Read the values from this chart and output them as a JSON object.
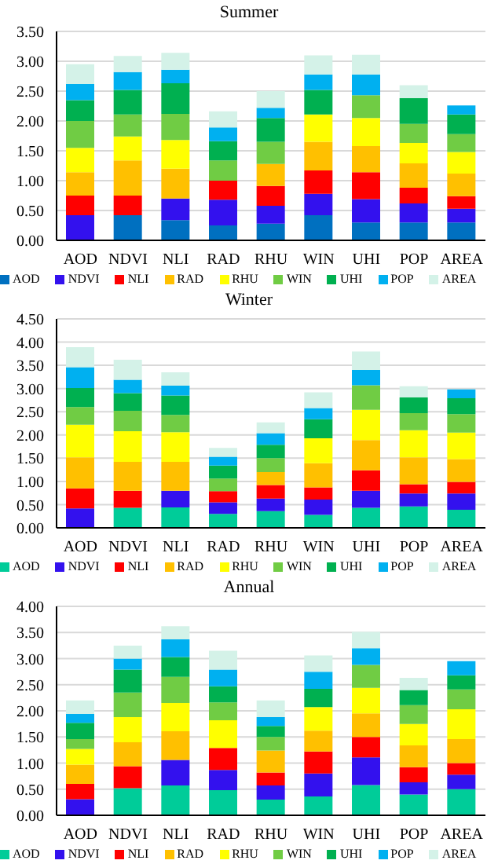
{
  "chart_data": [
    {
      "type": "bar",
      "title": "Summer",
      "stacked": true,
      "grid": "y",
      "legend": "bottom",
      "categories": [
        "AOD",
        "NDVI",
        "NLI",
        "RAD",
        "RHU",
        "WIN",
        "UHI",
        "POP",
        "AREA"
      ],
      "ylim": [
        0,
        3.5
      ],
      "yticks": [
        {
          "value": 0,
          "label": "0.00"
        },
        {
          "value": 0.5,
          "label": "0.50"
        },
        {
          "value": 1,
          "label": "1.00"
        },
        {
          "value": 1.5,
          "label": "1.50"
        },
        {
          "value": 2,
          "label": "2.00"
        },
        {
          "value": 2.5,
          "label": "2.50"
        },
        {
          "value": 3,
          "label": "3.00"
        },
        {
          "value": 3.5,
          "label": "3.50"
        }
      ],
      "series": [
        {
          "name": "AOD",
          "color": "#0070c0",
          "values": [
            0,
            0.42,
            0.34,
            0.25,
            0.28,
            0.42,
            0.3,
            0.3,
            0.3
          ]
        },
        {
          "name": "NDVI",
          "color": "#3311ee",
          "values": [
            0.42,
            0,
            0.36,
            0.43,
            0.3,
            0.36,
            0.39,
            0.32,
            0.23
          ]
        },
        {
          "name": "NLI",
          "color": "#ff0000",
          "values": [
            0.33,
            0.33,
            0,
            0.32,
            0.33,
            0.39,
            0.45,
            0.26,
            0.21
          ]
        },
        {
          "name": "RAD",
          "color": "#ffc000",
          "values": [
            0.39,
            0.59,
            0.5,
            0,
            0.37,
            0.48,
            0.44,
            0.41,
            0.38
          ]
        },
        {
          "name": "RHU",
          "color": "#ffff00",
          "values": [
            0.41,
            0.4,
            0.48,
            0,
            0,
            0.46,
            0.47,
            0.34,
            0.36
          ]
        },
        {
          "name": "WIN",
          "color": "#70cc44",
          "values": [
            0.45,
            0.37,
            0.44,
            0.34,
            0.37,
            0,
            0.38,
            0.32,
            0.3
          ]
        },
        {
          "name": "UHI",
          "color": "#00b050",
          "values": [
            0.35,
            0.41,
            0.51,
            0.32,
            0.4,
            0.41,
            0,
            0.43,
            0.33
          ]
        },
        {
          "name": "POP",
          "color": "#00b0f0",
          "values": [
            0.27,
            0.3,
            0.23,
            0.23,
            0.17,
            0.26,
            0.35,
            0,
            0.15
          ]
        },
        {
          "name": "AREA",
          "color": "#d4f2e8",
          "values": [
            0.33,
            0.27,
            0.28,
            0.27,
            0.28,
            0.32,
            0.33,
            0.22,
            0
          ]
        }
      ]
    },
    {
      "type": "bar",
      "title": "Winter",
      "stacked": true,
      "grid": "y",
      "legend": "bottom",
      "categories": [
        "AOD",
        "NDVI",
        "NLI",
        "RAD",
        "RHU",
        "WIN",
        "UHI",
        "POP",
        "AREA"
      ],
      "ylim": [
        0,
        4.5
      ],
      "yticks": [
        {
          "value": 0,
          "label": "0.00"
        },
        {
          "value": 0.5,
          "label": "0.50"
        },
        {
          "value": 1,
          "label": "1.00"
        },
        {
          "value": 1.5,
          "label": "1.50"
        },
        {
          "value": 2,
          "label": "2.00"
        },
        {
          "value": 2.5,
          "label": "2.50"
        },
        {
          "value": 3,
          "label": "3.00"
        },
        {
          "value": 3.5,
          "label": "3.50"
        },
        {
          "value": 4,
          "label": "4.00"
        },
        {
          "value": 4.5,
          "label": "4.50"
        }
      ],
      "series": [
        {
          "name": "AOD",
          "color": "#00cc99",
          "values": [
            0,
            0.43,
            0.44,
            0.3,
            0.36,
            0.28,
            0.43,
            0.46,
            0.39
          ]
        },
        {
          "name": "NDVI",
          "color": "#3311ee",
          "values": [
            0.42,
            0,
            0.36,
            0.25,
            0.27,
            0.33,
            0.37,
            0.28,
            0.35
          ]
        },
        {
          "name": "NLI",
          "color": "#ff0000",
          "values": [
            0.43,
            0.37,
            0,
            0.24,
            0.29,
            0.26,
            0.44,
            0.2,
            0.25
          ]
        },
        {
          "name": "RAD",
          "color": "#ffc000",
          "values": [
            0.67,
            0.62,
            0.62,
            0,
            0.28,
            0.52,
            0.65,
            0.58,
            0.49
          ]
        },
        {
          "name": "RHU",
          "color": "#ffff00",
          "values": [
            0.7,
            0.66,
            0.64,
            0,
            0,
            0.54,
            0.65,
            0.58,
            0.57
          ]
        },
        {
          "name": "WIN",
          "color": "#70cc44",
          "values": [
            0.38,
            0.44,
            0.37,
            0.27,
            0.3,
            0,
            0.53,
            0.37,
            0.4
          ]
        },
        {
          "name": "UHI",
          "color": "#00b050",
          "values": [
            0.41,
            0.38,
            0.42,
            0.28,
            0.29,
            0.41,
            0,
            0.34,
            0.34
          ]
        },
        {
          "name": "POP",
          "color": "#00b0f0",
          "values": [
            0.45,
            0.29,
            0.21,
            0.19,
            0.25,
            0.24,
            0.33,
            0,
            0.19
          ]
        },
        {
          "name": "AREA",
          "color": "#d4f2e8",
          "values": [
            0.43,
            0.43,
            0.29,
            0.19,
            0.23,
            0.34,
            0.4,
            0.24,
            0
          ]
        }
      ]
    },
    {
      "type": "bar",
      "title": "Annual",
      "stacked": true,
      "grid": "y",
      "legend": "bottom",
      "categories": [
        "AOD",
        "NDVI",
        "NLI",
        "RAD",
        "RHU",
        "WIN",
        "UHI",
        "POP",
        "AREA"
      ],
      "ylim": [
        0,
        4
      ],
      "yticks": [
        {
          "value": 0,
          "label": "0.00"
        },
        {
          "value": 0.5,
          "label": "0.50"
        },
        {
          "value": 1,
          "label": "1.00"
        },
        {
          "value": 1.5,
          "label": "1.50"
        },
        {
          "value": 2,
          "label": "2.00"
        },
        {
          "value": 2.5,
          "label": "2.50"
        },
        {
          "value": 3,
          "label": "3.00"
        },
        {
          "value": 3.5,
          "label": "3.50"
        },
        {
          "value": 4,
          "label": "4.00"
        }
      ],
      "series": [
        {
          "name": "AOD",
          "color": "#00cc99",
          "values": [
            0,
            0.52,
            0.57,
            0.48,
            0.3,
            0.36,
            0.58,
            0.4,
            0.5
          ]
        },
        {
          "name": "NDVI",
          "color": "#3311ee",
          "values": [
            0.31,
            0,
            0.49,
            0.39,
            0.27,
            0.44,
            0.53,
            0.23,
            0.28
          ]
        },
        {
          "name": "NLI",
          "color": "#ff0000",
          "values": [
            0.29,
            0.42,
            0,
            0.42,
            0.25,
            0.42,
            0.39,
            0.29,
            0.22
          ]
        },
        {
          "name": "RAD",
          "color": "#ffc000",
          "values": [
            0.37,
            0.46,
            0.55,
            0,
            0.42,
            0.4,
            0.45,
            0.42,
            0.46
          ]
        },
        {
          "name": "RHU",
          "color": "#ffff00",
          "values": [
            0.3,
            0.48,
            0.54,
            0.53,
            0,
            0.45,
            0.49,
            0.41,
            0.57
          ]
        },
        {
          "name": "WIN",
          "color": "#70cc44",
          "values": [
            0.19,
            0.47,
            0.5,
            0.34,
            0.26,
            0,
            0.44,
            0.36,
            0.38
          ]
        },
        {
          "name": "UHI",
          "color": "#00b050",
          "values": [
            0.31,
            0.44,
            0.38,
            0.31,
            0.21,
            0.35,
            0,
            0.29,
            0.27
          ]
        },
        {
          "name": "POP",
          "color": "#00b0f0",
          "values": [
            0.17,
            0.21,
            0.34,
            0.32,
            0.17,
            0.33,
            0.32,
            0,
            0.27
          ]
        },
        {
          "name": "AREA",
          "color": "#d4f2e8",
          "values": [
            0.26,
            0.25,
            0.25,
            0.36,
            0.32,
            0.31,
            0.31,
            0.23,
            0
          ]
        }
      ]
    }
  ]
}
